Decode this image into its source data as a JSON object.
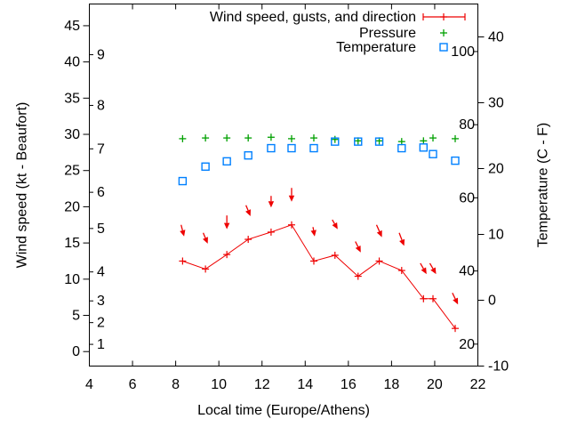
{
  "colors": {
    "wind": "#ee0000",
    "pressure": "#00a000",
    "temperature": "#0080ff",
    "axis": "#000000",
    "background": "#ffffff"
  },
  "labels": {
    "x_axis": "Local time (Europe/Athens)",
    "y_axis_left": "Wind speed (kt - Beaufort)",
    "y_axis_right": "Temperature (C - F)"
  },
  "legend": {
    "position": "top-right-inside",
    "entries": [
      {
        "label": "Wind speed, gusts, and direction",
        "series": "wind"
      },
      {
        "label": "Pressure",
        "series": "pressure"
      },
      {
        "label": "Temperature",
        "series": "temperature"
      }
    ]
  },
  "chart_data": {
    "type": "line",
    "title": "",
    "xlabel": "Local time (Europe/Athens)",
    "ylabel_left": "Wind speed (kt - Beaufort)",
    "ylabel_right": "Temperature (C - F)",
    "grid": false,
    "legend_position": "top-right-inside",
    "x_range": [
      4,
      22
    ],
    "x_ticks": [
      4,
      6,
      8,
      10,
      12,
      14,
      16,
      18,
      20,
      22
    ],
    "left_axis": {
      "unit": "kt",
      "range": [
        -2,
        48
      ],
      "ticks": [
        0,
        5,
        10,
        15,
        20,
        25,
        30,
        35,
        40,
        45
      ],
      "beaufort": [
        {
          "label": "1",
          "kt": 1
        },
        {
          "label": "2",
          "kt": 4
        },
        {
          "label": "3",
          "kt": 7
        },
        {
          "label": "4",
          "kt": 11
        },
        {
          "label": "5",
          "kt": 17
        },
        {
          "label": "6",
          "kt": 22
        },
        {
          "label": "7",
          "kt": 28
        },
        {
          "label": "8",
          "kt": 34
        },
        {
          "label": "9",
          "kt": 41
        }
      ]
    },
    "right_axis": {
      "unit": "C",
      "range": [
        -10,
        45
      ],
      "ticks": [
        -10,
        0,
        10,
        20,
        30,
        40
      ],
      "fahrenheit_ticks": [
        20,
        40,
        60,
        80,
        100
      ]
    },
    "x": [
      8.32,
      9.38,
      10.37,
      11.36,
      12.42,
      13.37,
      14.4,
      15.38,
      16.45,
      17.43,
      18.47,
      19.48,
      19.92,
      20.95
    ],
    "series": [
      {
        "name": "Wind speed, gusts, and direction",
        "style": "linespoints",
        "marker": "plus",
        "color": "#ee0000",
        "axis": "kt",
        "values_kt": [
          12.5,
          11.4,
          13.4,
          15.5,
          16.5,
          17.5,
          12.5,
          13.3,
          10.4,
          12.5,
          11.2,
          7.3,
          7.3,
          3.2
        ]
      },
      {
        "name": "Wind gust direction arrows",
        "style": "vectors",
        "color": "#ee0000",
        "axis": "kt",
        "gust_kt": [
          17.5,
          16.4,
          18.8,
          20.2,
          21.5,
          22.6,
          17.2,
          18.2,
          15.2,
          17.5,
          16.4,
          12.2,
          12.2,
          8.1
        ],
        "tip_kt": [
          15.9,
          14.9,
          16.9,
          18.7,
          19.9,
          20.7,
          15.9,
          16.9,
          13.7,
          15.8,
          14.6,
          10.7,
          10.7,
          6.5
        ],
        "tilt_h": [
          0.14,
          0.21,
          0,
          0.21,
          0,
          0,
          0.08,
          0.25,
          0.25,
          0.25,
          0.23,
          0.29,
          0.29,
          0.26
        ]
      },
      {
        "name": "Pressure",
        "style": "points",
        "marker": "plus",
        "color": "#00a000",
        "axis": "unlabeled",
        "display_kt": [
          29.4,
          29.5,
          29.5,
          29.5,
          29.6,
          29.4,
          29.5,
          29.3,
          29.1,
          29.1,
          29.0,
          29.1,
          29.5,
          29.4
        ]
      },
      {
        "name": "Temperature",
        "style": "points",
        "marker": "square-open",
        "color": "#0080ff",
        "axis": "C",
        "values_c": [
          18.1,
          20.3,
          21.1,
          22.0,
          23.1,
          23.1,
          23.1,
          24.1,
          24.1,
          24.1,
          23.1,
          23.2,
          22.2,
          21.2
        ]
      }
    ]
  }
}
